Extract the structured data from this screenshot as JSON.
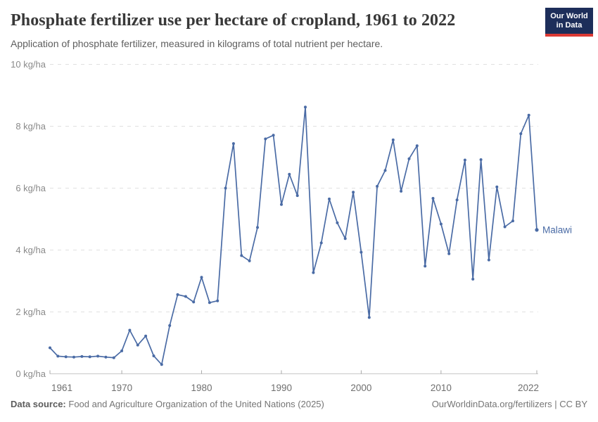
{
  "header": {
    "title": "Phosphate fertilizer use per hectare of cropland, 1961 to 2022",
    "subtitle": "Application of phosphate fertilizer, measured in kilograms of total nutrient per hectare."
  },
  "logo": {
    "line1": "Our World",
    "line2": "in Data",
    "bg_color": "#1d2e5a",
    "bar_color": "#dc3a34"
  },
  "chart_data": {
    "type": "line",
    "title": "Phosphate fertilizer use per hectare of cropland, 1961 to 2022",
    "xlabel": "",
    "ylabel": "kg/ha",
    "xlim": [
      1961,
      2022
    ],
    "ylim": [
      0,
      10
    ],
    "grid": "horizontal-dashed",
    "legend": "end-of-line entity label",
    "xticks": [
      1961,
      1970,
      1980,
      1990,
      2000,
      2010,
      2022
    ],
    "xtick_labels": [
      "1961",
      "1970",
      "1980",
      "1990",
      "2000",
      "2010",
      "2022"
    ],
    "ytick_values": [
      0,
      2,
      4,
      6,
      8,
      10
    ],
    "ytick_labels": [
      "0 kg/ha",
      "2 kg/ha",
      "4 kg/ha",
      "6 kg/ha",
      "8 kg/ha",
      "10 kg/ha"
    ],
    "series": [
      {
        "name": "Malawi",
        "color": "#4a6ba5",
        "years": [
          1961,
          1962,
          1963,
          1964,
          1965,
          1966,
          1967,
          1968,
          1969,
          1970,
          1971,
          1972,
          1973,
          1974,
          1975,
          1976,
          1977,
          1978,
          1979,
          1980,
          1981,
          1982,
          1983,
          1984,
          1985,
          1986,
          1987,
          1988,
          1989,
          1990,
          1991,
          1992,
          1993,
          1994,
          1995,
          1996,
          1997,
          1998,
          1999,
          2000,
          2001,
          2002,
          2003,
          2004,
          2005,
          2006,
          2007,
          2008,
          2009,
          2010,
          2011,
          2012,
          2013,
          2014,
          2015,
          2016,
          2017,
          2018,
          2019,
          2020,
          2021,
          2022
        ],
        "values": [
          0.84,
          0.57,
          0.55,
          0.54,
          0.56,
          0.55,
          0.57,
          0.54,
          0.52,
          0.74,
          1.41,
          0.93,
          1.22,
          0.58,
          0.3,
          1.56,
          2.56,
          2.5,
          2.32,
          3.12,
          2.3,
          2.36,
          6.0,
          7.44,
          3.82,
          3.65,
          4.73,
          7.59,
          7.71,
          5.47,
          6.45,
          5.76,
          8.62,
          3.27,
          4.23,
          5.65,
          4.88,
          4.37,
          5.87,
          3.93,
          1.82,
          6.06,
          6.57,
          7.56,
          5.9,
          6.95,
          7.37,
          3.48,
          5.67,
          4.84,
          3.88,
          5.62,
          6.91,
          3.06,
          6.92,
          3.68,
          6.04,
          4.75,
          4.94,
          7.76,
          8.36,
          4.65
        ]
      }
    ]
  },
  "colors": {
    "grid": "#e0e0e0",
    "axis": "#c8c8c8",
    "tick": "#a8a8a8",
    "axis_label": "#8a8a8a",
    "xtick_label": "#6f6f6f"
  },
  "footer": {
    "source_label": "Data source:",
    "source_text": "Food and Agriculture Organization of the United Nations (2025)",
    "link_text": "OurWorldinData.org/fertilizers | CC BY"
  }
}
